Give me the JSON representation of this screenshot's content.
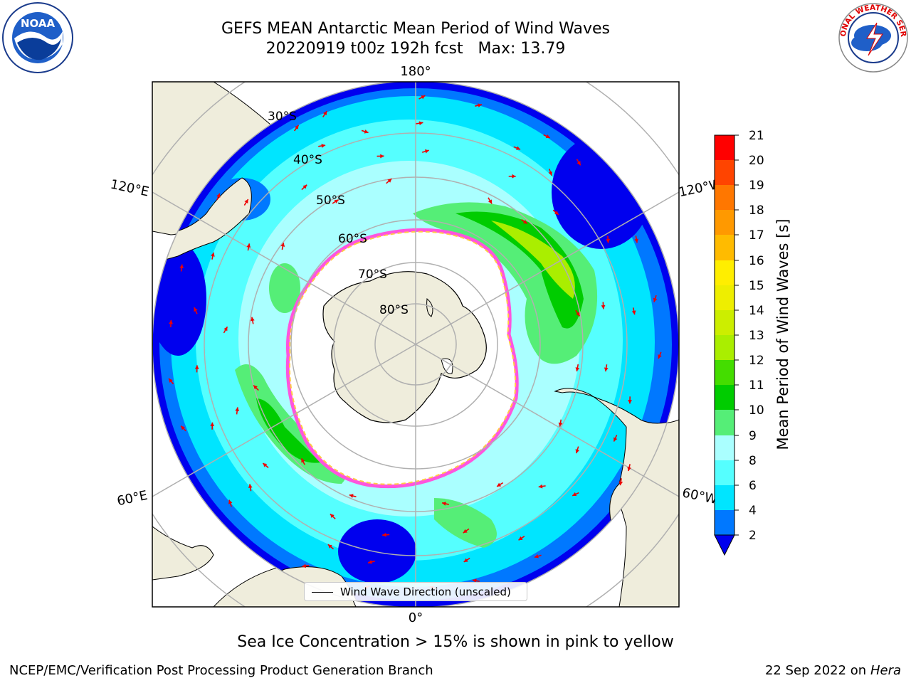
{
  "title": {
    "line1": "GEFS MEAN Antarctic Mean Period of Wind Waves",
    "line2": "20220919 t00z 192h fcst   Max: 13.79"
  },
  "logos": {
    "left": "NOAA",
    "right": "NATIONAL WEATHER SERVICE"
  },
  "map": {
    "projection": "south-polar-stereographic",
    "longitude_labels": {
      "top": "180°",
      "bottom": "0°",
      "left_upper": "120°E",
      "left_lower": "60°E",
      "right_upper": "120°W",
      "right_lower": "60°W"
    },
    "latitude_labels": [
      "30°S",
      "40°S",
      "50°S",
      "60°S",
      "70°S",
      "80°S"
    ],
    "colors": {
      "land": "#efeddc",
      "ice_free_hole": "#ffffff",
      "sea_ice_edge": "#ff55dd",
      "arrow": "#ee0000",
      "grid": "#b0b0b0"
    }
  },
  "legend": {
    "label": "Wind Wave Direction (unscaled)"
  },
  "colorbar": {
    "label": "Mean Period of Wind Waves [s]",
    "ticks": [
      "21",
      "20",
      "19",
      "18",
      "17",
      "16",
      "15",
      "14",
      "13",
      "12",
      "11",
      "10",
      "9",
      "8",
      "6",
      "4",
      "2"
    ],
    "bins": [
      {
        "range": "<2",
        "color": "#0000ee"
      },
      {
        "range": "2-4",
        "color": "#0078ff"
      },
      {
        "range": "4-6",
        "color": "#00e5ff"
      },
      {
        "range": "6-8",
        "color": "#55ffff"
      },
      {
        "range": "8-9",
        "color": "#aaffff"
      },
      {
        "range": "9-10",
        "color": "#55ee77"
      },
      {
        "range": "10-11",
        "color": "#00cc00"
      },
      {
        "range": "11-12",
        "color": "#44dd00"
      },
      {
        "range": "12-13",
        "color": "#aaee00"
      },
      {
        "range": "13-14",
        "color": "#ccee00"
      },
      {
        "range": "14-15",
        "color": "#eeee00"
      },
      {
        "range": "15-16",
        "color": "#ffee00"
      },
      {
        "range": "16-17",
        "color": "#ffbb00"
      },
      {
        "range": "17-18",
        "color": "#ff9900"
      },
      {
        "range": "18-19",
        "color": "#ff7700"
      },
      {
        "range": "19-20",
        "color": "#ff4400"
      },
      {
        "range": "20-21",
        "color": "#ff0000"
      }
    ]
  },
  "sea_ice_note": "Sea Ice Concentration > 15% is shown in pink to yellow",
  "footer": {
    "left": "NCEP/EMC/Verification Post Processing Product Generation Branch",
    "right_date": "22 Sep 2022 on",
    "right_host": "Hera"
  }
}
